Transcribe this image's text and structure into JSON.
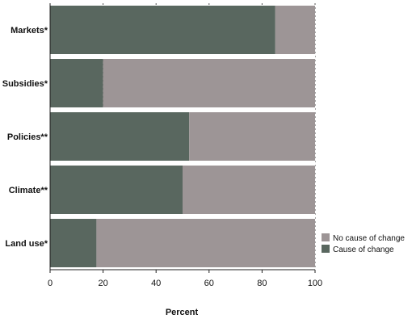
{
  "chart_data": {
    "type": "bar",
    "orientation": "horizontal",
    "stacked": true,
    "categories": [
      "Markets*",
      "Subsidies*",
      "Policies**",
      "Climate**",
      "Land use*"
    ],
    "series": [
      {
        "name": "Cause of change",
        "values": [
          85,
          20,
          52.5,
          50,
          17.5
        ]
      },
      {
        "name": "No cause of change",
        "values": [
          15,
          80,
          47.5,
          50,
          82.5
        ]
      }
    ],
    "xlabel": "Percent",
    "ylabel": "",
    "xlim": [
      0,
      100
    ],
    "x_ticks": [
      0,
      20,
      40,
      60,
      80,
      100
    ],
    "grid": "vertical dotted",
    "legend_position": "bottom-right",
    "legend_order": [
      "No cause of change",
      "Cause of change"
    ],
    "colors": {
      "cause_of_change": "#59675f",
      "no_cause_of_change": "#9d9596",
      "separator": "#ffffff"
    }
  }
}
